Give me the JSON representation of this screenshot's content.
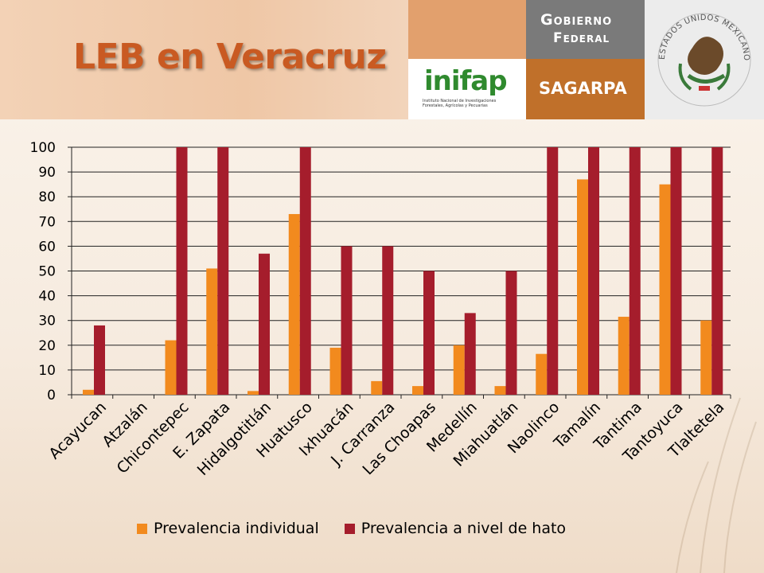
{
  "slide": {
    "title": "LEB en Veracruz"
  },
  "logos": {
    "inifap_name": "inifap",
    "inifap_subtitle": "Instituto Nacional de Investigaciones Forestales, Agrícolas y Pecuarias",
    "gobierno_line1": "Gobierno",
    "gobierno_line2": "Federal",
    "sagarpa": "SAGARPA",
    "seal_text": "ESTADOS UNIDOS MEXICANOS"
  },
  "colors": {
    "individual": "#f28a1e",
    "hato": "#a51d2c",
    "title": "#c95a22"
  },
  "chart_data": {
    "type": "bar",
    "categories": [
      "Acayucan",
      "Atzalán",
      "Chicontepec",
      "E. Zapata",
      "Hidalgotitlán",
      "Huatusco",
      "Ixhuacán",
      "J. Carranza",
      "Las Choapas",
      "Medellín",
      "Miahuatlán",
      "Naolinco",
      "Tamalín",
      "Tantima",
      "Tantoyuca",
      "Tlaltetela"
    ],
    "series": [
      {
        "name": "Prevalencia individual",
        "values": [
          2,
          0,
          22,
          51,
          1.5,
          73,
          19,
          5.5,
          3.5,
          20,
          3.5,
          16.5,
          87,
          31.5,
          85,
          30
        ]
      },
      {
        "name": "Prevalencia a nivel de hato",
        "values": [
          28,
          0,
          100,
          100,
          57,
          100,
          60,
          60,
          50,
          33,
          50,
          100,
          100,
          100,
          100,
          100
        ]
      }
    ],
    "ylim": [
      0,
      100
    ],
    "yticks": [
      0,
      10,
      20,
      30,
      40,
      50,
      60,
      70,
      80,
      90,
      100
    ],
    "grid": true,
    "legend_position": "bottom"
  }
}
